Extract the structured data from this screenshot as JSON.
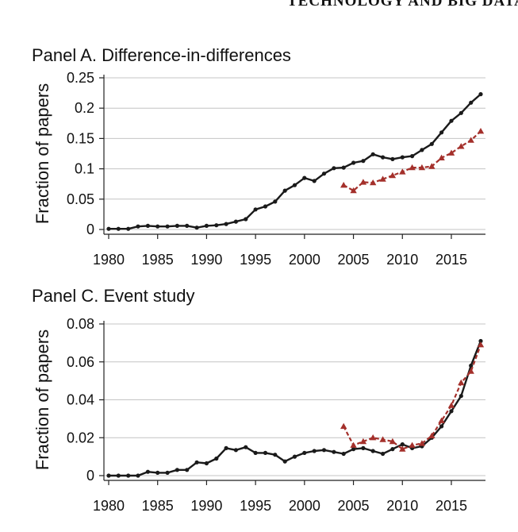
{
  "header": {
    "text": "TECHNOLOGY AND BIG DATA"
  },
  "chart_data": [
    {
      "type": "line",
      "title": "Panel A. Difference-in-differences",
      "ylabel": "Fraction of papers",
      "xlabel": "",
      "xlim": [
        1980,
        2018
      ],
      "ylim": [
        0,
        0.25
      ],
      "xticks": [
        1980,
        1985,
        1990,
        1995,
        2000,
        2005,
        2010,
        2015
      ],
      "yticks": [
        0,
        0.05,
        0.1,
        0.15,
        0.2,
        0.25
      ],
      "ytick_labels": [
        "0",
        "0.05",
        "0.1",
        "0.15",
        "0.2",
        "0.25"
      ],
      "grid": true,
      "series": [
        {
          "style": "solid",
          "color": "#1a1a1a",
          "marker": "circle",
          "x": [
            1980,
            1981,
            1982,
            1983,
            1984,
            1985,
            1986,
            1987,
            1988,
            1989,
            1990,
            1991,
            1992,
            1993,
            1994,
            1995,
            1996,
            1997,
            1998,
            1999,
            2000,
            2001,
            2002,
            2003,
            2004,
            2005,
            2006,
            2007,
            2008,
            2009,
            2010,
            2011,
            2012,
            2013,
            2014,
            2015,
            2016,
            2017,
            2018
          ],
          "y": [
            0.001,
            0.001,
            0.001,
            0.005,
            0.006,
            0.005,
            0.005,
            0.006,
            0.006,
            0.003,
            0.006,
            0.007,
            0.009,
            0.013,
            0.017,
            0.033,
            0.038,
            0.046,
            0.064,
            0.073,
            0.085,
            0.08,
            0.092,
            0.101,
            0.102,
            0.11,
            0.113,
            0.124,
            0.119,
            0.116,
            0.119,
            0.121,
            0.131,
            0.141,
            0.16,
            0.179,
            0.192,
            0.209,
            0.223
          ]
        },
        {
          "style": "dashed",
          "color": "#a4302b",
          "marker": "triangle",
          "x": [
            2004,
            2005,
            2006,
            2007,
            2008,
            2009,
            2010,
            2011,
            2012,
            2013,
            2014,
            2015,
            2016,
            2017,
            2018
          ],
          "y": [
            0.073,
            0.064,
            0.078,
            0.077,
            0.083,
            0.089,
            0.095,
            0.102,
            0.102,
            0.104,
            0.118,
            0.126,
            0.137,
            0.147,
            0.162
          ]
        }
      ]
    },
    {
      "type": "line",
      "title": "Panel C. Event study",
      "ylabel": "Fraction of papers",
      "xlabel": "",
      "xlim": [
        1980,
        2018
      ],
      "ylim": [
        0,
        0.08
      ],
      "xticks": [
        1980,
        1985,
        1990,
        1995,
        2000,
        2005,
        2010,
        2015
      ],
      "yticks": [
        0,
        0.02,
        0.04,
        0.06,
        0.08
      ],
      "ytick_labels": [
        "0",
        "0.02",
        "0.04",
        "0.06",
        "0.08"
      ],
      "grid": true,
      "series": [
        {
          "style": "solid",
          "color": "#1a1a1a",
          "marker": "circle",
          "x": [
            1980,
            1981,
            1982,
            1983,
            1984,
            1985,
            1986,
            1987,
            1988,
            1989,
            1990,
            1991,
            1992,
            1993,
            1994,
            1995,
            1996,
            1997,
            1998,
            1999,
            2000,
            2001,
            2002,
            2003,
            2004,
            2005,
            2006,
            2007,
            2008,
            2009,
            2010,
            2011,
            2012,
            2013,
            2014,
            2015,
            2016,
            2017,
            2018
          ],
          "y": [
            0.0,
            0.0,
            0.0,
            0.0,
            0.002,
            0.0015,
            0.0015,
            0.003,
            0.003,
            0.007,
            0.0065,
            0.009,
            0.0145,
            0.0135,
            0.015,
            0.012,
            0.012,
            0.011,
            0.0075,
            0.01,
            0.012,
            0.013,
            0.0135,
            0.0125,
            0.0115,
            0.014,
            0.0145,
            0.013,
            0.0115,
            0.014,
            0.0165,
            0.0145,
            0.0155,
            0.02,
            0.026,
            0.034,
            0.042,
            0.058,
            0.071
          ]
        },
        {
          "style": "dashed",
          "color": "#a4302b",
          "marker": "triangle",
          "x": [
            2004,
            2005,
            2006,
            2007,
            2008,
            2009,
            2010,
            2011,
            2012,
            2013,
            2014,
            2015,
            2016,
            2017,
            2018
          ],
          "y": [
            0.026,
            0.016,
            0.018,
            0.02,
            0.019,
            0.018,
            0.014,
            0.016,
            0.017,
            0.021,
            0.029,
            0.037,
            0.049,
            0.055,
            0.069
          ]
        }
      ]
    }
  ]
}
